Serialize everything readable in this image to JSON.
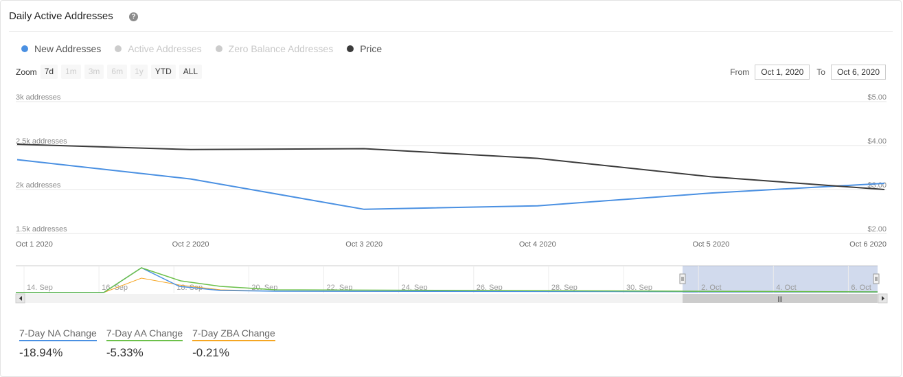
{
  "title": "Daily Active Addresses",
  "help_icon": "question-circle-icon",
  "legend": [
    {
      "label": "New Addresses",
      "color": "#4a90e2",
      "active": true
    },
    {
      "label": "Active Addresses",
      "color": "#cccccc",
      "active": false
    },
    {
      "label": "Zero Balance Addresses",
      "color": "#cccccc",
      "active": false
    },
    {
      "label": "Price",
      "color": "#3b3b3b",
      "active": true
    }
  ],
  "zoom": {
    "label": "Zoom",
    "buttons": [
      {
        "label": "7d",
        "enabled": true
      },
      {
        "label": "1m",
        "enabled": false
      },
      {
        "label": "3m",
        "enabled": false
      },
      {
        "label": "6m",
        "enabled": false
      },
      {
        "label": "1y",
        "enabled": false
      },
      {
        "label": "YTD",
        "enabled": true
      },
      {
        "label": "ALL",
        "enabled": true
      }
    ]
  },
  "range": {
    "from_label": "From",
    "from_value": "Oct 1, 2020",
    "to_label": "To",
    "to_value": "Oct 6, 2020"
  },
  "chart_data": {
    "type": "line",
    "x": [
      "Oct 1 2020",
      "Oct 2 2020",
      "Oct 3 2020",
      "Oct 4 2020",
      "Oct 5 2020",
      "Oct 6 2020"
    ],
    "y_left": {
      "ticks": [
        "3k addresses",
        "2.5k addresses",
        "2k addresses",
        "1.5k addresses"
      ],
      "range": [
        1500,
        3000
      ]
    },
    "y_right": {
      "ticks": [
        "$5.00",
        "$4.00",
        "$3.00",
        "$2.00"
      ],
      "range": [
        2,
        5
      ]
    },
    "grid": true,
    "series": [
      {
        "name": "New Addresses",
        "axis": "left",
        "color": "#4a90e2",
        "values": [
          2340,
          2120,
          1775,
          1815,
          1960,
          2070
        ]
      },
      {
        "name": "Price",
        "axis": "right",
        "color": "#3b3b3b",
        "values": [
          4.03,
          3.91,
          3.93,
          3.71,
          3.29,
          3.0
        ]
      }
    ],
    "navigator": {
      "x_labels": [
        "14. Sep",
        "16. Sep",
        "18. Sep",
        "20. Sep",
        "22. Sep",
        "24. Sep",
        "26. Sep",
        "28. Sep",
        "30. Sep",
        "2. Oct",
        "4. Oct",
        "6. Oct"
      ],
      "selected_from": "Oct 1 2020",
      "selected_to": "Oct 6 2020"
    }
  },
  "stats": [
    {
      "label": "7-Day NA Change",
      "value": "-18.94%",
      "color": "#4a90e2"
    },
    {
      "label": "7-Day AA Change",
      "value": "-5.33%",
      "color": "#6cc04a"
    },
    {
      "label": "7-Day ZBA Change",
      "value": "-0.21%",
      "color": "#f5a623"
    }
  ]
}
